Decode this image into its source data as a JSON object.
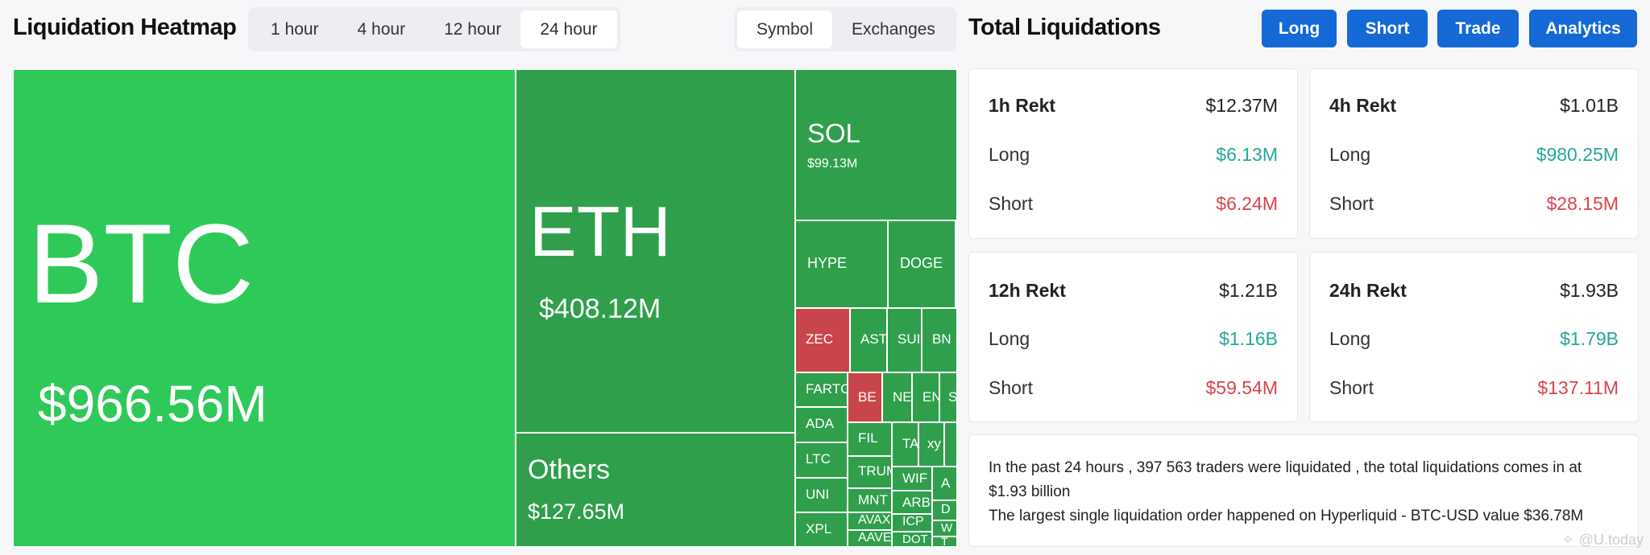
{
  "header": {
    "title": "Liquidation Heatmap",
    "right_title": "Total Liquidations"
  },
  "time_tabs": [
    "1 hour",
    "4 hour",
    "12 hour",
    "24 hour"
  ],
  "active_time_tab": "24 hour",
  "view_tabs": [
    "Symbol",
    "Exchanges"
  ],
  "active_view_tab": "Symbol",
  "action_buttons": [
    "Long",
    "Short",
    "Trade",
    "Analytics"
  ],
  "heatmap": {
    "btc": {
      "symbol": "BTC",
      "value": "$966.56M"
    },
    "eth": {
      "symbol": "ETH",
      "value": "$408.12M"
    },
    "others": {
      "symbol": "Others",
      "value": "$127.65M"
    },
    "sol": {
      "symbol": "SOL",
      "value": "$99.13M"
    },
    "small": [
      "HYPE",
      "DOGE",
      "ZEC",
      "AST",
      "SUI",
      "BN",
      "FARTC",
      "BE",
      "NE",
      "EN",
      "S",
      "ADA",
      "FIL",
      "TA",
      "xy",
      "LTC",
      "TRUM",
      "WIF",
      "A",
      "MNT",
      "ARB",
      "D",
      "UNI",
      "AVAX",
      "ICP",
      "W",
      "XPL",
      "AAVE",
      "DOT",
      "T"
    ]
  },
  "stats": [
    {
      "label": "1h Rekt",
      "total": "$12.37M",
      "long_label": "Long",
      "long": "$6.13M",
      "short_label": "Short",
      "short": "$6.24M"
    },
    {
      "label": "4h Rekt",
      "total": "$1.01B",
      "long_label": "Long",
      "long": "$980.25M",
      "short_label": "Short",
      "short": "$28.15M"
    },
    {
      "label": "12h Rekt",
      "total": "$1.21B",
      "long_label": "Long",
      "long": "$1.16B",
      "short_label": "Short",
      "short": "$59.54M"
    },
    {
      "label": "24h Rekt",
      "total": "$1.93B",
      "long_label": "Long",
      "long": "$1.79B",
      "short_label": "Short",
      "short": "$137.11M"
    }
  ],
  "summary": {
    "line1": "In the past 24 hours , 397 563 traders were liquidated , the total liquidations comes in at $1.93 billion",
    "line2": "The largest single liquidation order happened on Hyperliquid - BTC-USD value $36.78M"
  },
  "watermark": "@U.today",
  "colors": {
    "accent": "#1469d6",
    "long": "#26a69a",
    "short": "#d9444b",
    "cell_bright": "#2fc95a",
    "cell_green": "#2f9f4c",
    "cell_red": "#c8464b"
  }
}
